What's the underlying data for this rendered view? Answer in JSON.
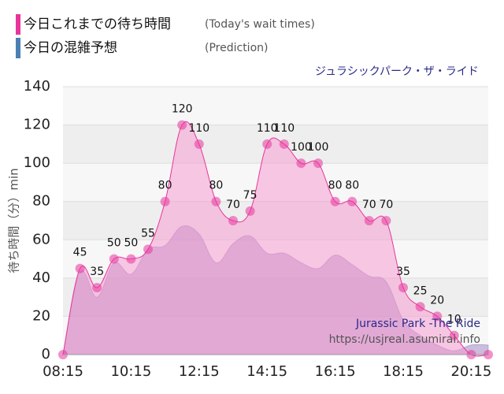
{
  "chart_data": {
    "type": "area",
    "subtitle": "ジュラシックパーク・ザ・ライド",
    "y_label": "待ち時間（分）min",
    "legend_notes": [
      "(Today's wait times)",
      "(Prediction)"
    ],
    "watermark": [
      "Jurassic Park -The Ride",
      "https://usjreal.asumirai.info"
    ],
    "categories": [
      "08:15",
      null,
      null,
      null,
      "10:15",
      null,
      null,
      null,
      "12:15",
      null,
      null,
      null,
      "14:15",
      null,
      null,
      null,
      "16:15",
      null,
      null,
      null,
      "18:15",
      null,
      null,
      null,
      "20:15",
      null
    ],
    "series": [
      {
        "name": "今日これまでの待ち時間",
        "color": "#e8359c",
        "values": [
          0,
          45,
          35,
          50,
          50,
          55,
          80,
          120,
          110,
          80,
          70,
          75,
          110,
          110,
          100,
          100,
          80,
          80,
          70,
          70,
          35,
          25,
          20,
          10,
          0,
          0
        ]
      },
      {
        "name": "今日の混雑予想",
        "color": "#4a80b3",
        "values": [
          0,
          43,
          30,
          48,
          42,
          55,
          57,
          67,
          63,
          48,
          58,
          62,
          53,
          53,
          48,
          45,
          52,
          47,
          41,
          38,
          18,
          10,
          5,
          2,
          5,
          5
        ]
      }
    ],
    "ylim": [
      0,
      140
    ],
    "yticks": [
      0,
      20,
      40,
      60,
      80,
      100,
      120,
      140
    ],
    "grid": true
  }
}
